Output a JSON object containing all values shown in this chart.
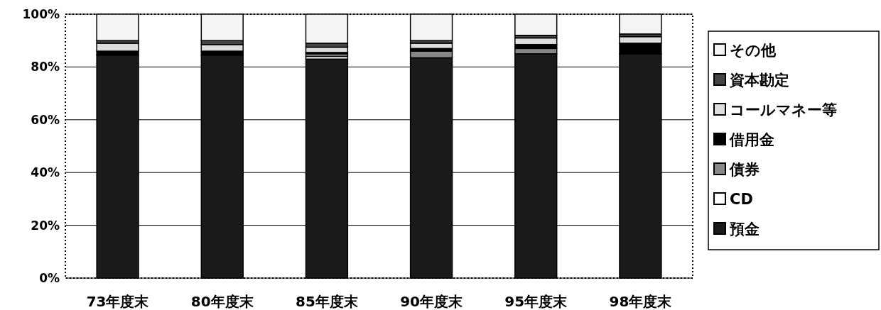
{
  "chart_data": {
    "type": "bar",
    "stacked": true,
    "categories": [
      "73年度末",
      "80年度末",
      "85年度末",
      "90年度末",
      "95年度末",
      "98年度末"
    ],
    "series": [
      {
        "name": "預金",
        "color": "#1a1a1a",
        "values": [
          84.5,
          84.5,
          83,
          83.5,
          85,
          85
        ]
      },
      {
        "name": "CD",
        "color": "#ffffff",
        "values": [
          0,
          0,
          1,
          0,
          0,
          0
        ]
      },
      {
        "name": "債券",
        "color": "#888888",
        "values": [
          0,
          0,
          1,
          2.5,
          2,
          0
        ]
      },
      {
        "name": "借用金",
        "color": "#000000",
        "values": [
          1.5,
          1.5,
          0.5,
          1,
          1.5,
          4
        ]
      },
      {
        "name": "コールマネー等",
        "color": "#dddddd",
        "values": [
          3,
          2.5,
          2,
          2,
          2.5,
          2.5
        ]
      },
      {
        "name": "資本勘定",
        "color": "#444444",
        "values": [
          1,
          1.5,
          1.5,
          1,
          1,
          1
        ]
      },
      {
        "name": "その他",
        "color": "#f4f4f4",
        "values": [
          10,
          10,
          11,
          10,
          8,
          7.5
        ]
      }
    ],
    "ylim": [
      0,
      100
    ],
    "yticks": [
      {
        "value": 0,
        "label": "0%"
      },
      {
        "value": 20,
        "label": "20%"
      },
      {
        "value": 40,
        "label": "40%"
      },
      {
        "value": 60,
        "label": "60%"
      },
      {
        "value": 80,
        "label": "80%"
      },
      {
        "value": 100,
        "label": "100%"
      }
    ],
    "grid": "y",
    "legend": "right"
  }
}
